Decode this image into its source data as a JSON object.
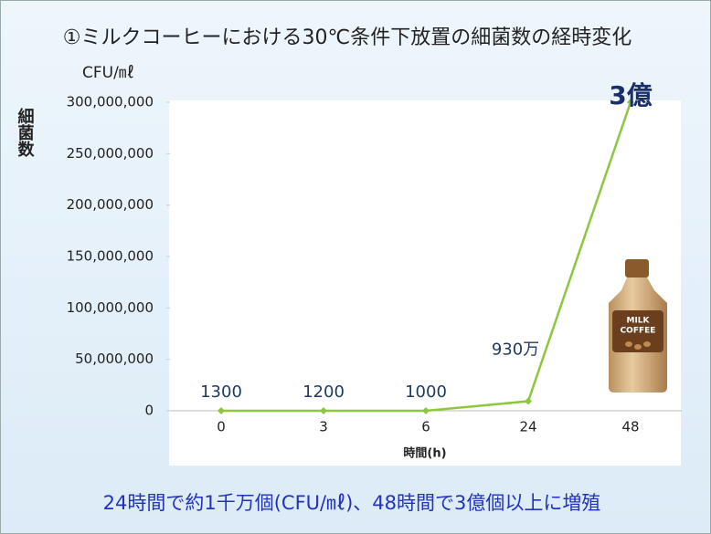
{
  "chart_data": {
    "type": "line",
    "title": "①ミルクコーヒーにおける30℃条件下放置の細菌数の経時変化",
    "y_unit": "CFU/㎖",
    "y_label": "細菌数",
    "x_label": "時間(h)",
    "caption": "24時間で約1千万個(CFU/㎖)、48時間で3億個以上に増殖",
    "illustration_text": [
      "MILK",
      "COFFEE"
    ],
    "categories": [
      "0",
      "3",
      "6",
      "24",
      "48"
    ],
    "values": [
      1300,
      1200,
      1000,
      9300000,
      300000000
    ],
    "value_labels": [
      "1300",
      "1200",
      "1000",
      "930万",
      "3億"
    ],
    "color": "#8dc63f",
    "ylim": [
      0,
      300000000
    ],
    "yticks": [
      0,
      {
        "value": 50000000,
        "label": "50,000,000"
      },
      {
        "value": 100000000,
        "label": "100,000,000"
      },
      {
        "value": 150000000,
        "label": "150,000,000"
      },
      {
        "value": 200000000,
        "label": "200,000,000"
      },
      {
        "value": 250000000,
        "label": "250,000,000"
      },
      {
        "value": 300000000,
        "label": "300,000,000"
      }
    ],
    "grid": false
  }
}
